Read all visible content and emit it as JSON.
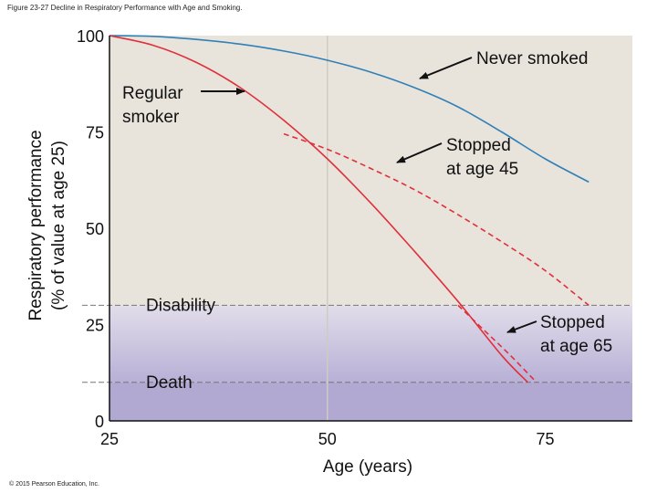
{
  "caption": "Figure 23-27 Decline in Respiratory Performance with Age and Smoking.",
  "copyright": "© 2015 Pearson Education, Inc.",
  "colors": {
    "plot_background": "#e8e4dc",
    "disability_band_top": "#e2ddea",
    "death_band": "#b1a9d2",
    "never_smoked": "#2f7fb8",
    "smoker": "#e0303a",
    "threshold_line": "#777777"
  },
  "chart_data": {
    "type": "line",
    "xlabel": "Age (years)",
    "ylabel_line1": "Respiratory performance",
    "ylabel_line2": "(% of value at age 25)",
    "xlim": [
      25,
      85
    ],
    "ylim": [
      0,
      100
    ],
    "xticks": [
      25,
      50,
      75
    ],
    "yticks": [
      0,
      25,
      50,
      75,
      100
    ],
    "thresholds": [
      {
        "label": "Disability",
        "y": 30
      },
      {
        "label": "Death",
        "y": 10
      }
    ],
    "series": [
      {
        "name": "Never smoked",
        "style": "solid",
        "color_key": "never_smoked",
        "points": [
          [
            25,
            100
          ],
          [
            30,
            99.8
          ],
          [
            35,
            99
          ],
          [
            40,
            97.8
          ],
          [
            45,
            96
          ],
          [
            50,
            93.6
          ],
          [
            55,
            90.5
          ],
          [
            60,
            86.5
          ],
          [
            65,
            81.5
          ],
          [
            70,
            75
          ],
          [
            75,
            68
          ],
          [
            80,
            62
          ]
        ]
      },
      {
        "name": "Regular smoker",
        "style": "solid",
        "color_key": "smoker",
        "points": [
          [
            25,
            100
          ],
          [
            30,
            97.5
          ],
          [
            35,
            93
          ],
          [
            40,
            86.5
          ],
          [
            45,
            78
          ],
          [
            50,
            68
          ],
          [
            55,
            56.5
          ],
          [
            60,
            44
          ],
          [
            65,
            31
          ],
          [
            70,
            17
          ],
          [
            73,
            10
          ]
        ]
      },
      {
        "name": "Stopped at age 45",
        "style": "dashed",
        "color_key": "smoker",
        "points": [
          [
            45,
            74.5
          ],
          [
            50,
            70.5
          ],
          [
            55,
            65.5
          ],
          [
            60,
            60
          ],
          [
            65,
            53.5
          ],
          [
            70,
            46.5
          ],
          [
            75,
            39
          ],
          [
            80,
            30
          ]
        ]
      },
      {
        "name": "Stopped at age 65",
        "style": "dashed",
        "color_key": "smoker",
        "points": [
          [
            65,
            30
          ],
          [
            68,
            23.5
          ],
          [
            71,
            17
          ],
          [
            74,
            10
          ]
        ]
      }
    ],
    "annotations": [
      {
        "id": "never",
        "lines": [
          "Never smoked"
        ]
      },
      {
        "id": "regular",
        "lines": [
          "Regular",
          "smoker"
        ]
      },
      {
        "id": "stop45",
        "lines": [
          "Stopped",
          "at age 45"
        ]
      },
      {
        "id": "stop65",
        "lines": [
          "Stopped",
          "at age 65"
        ]
      }
    ]
  }
}
